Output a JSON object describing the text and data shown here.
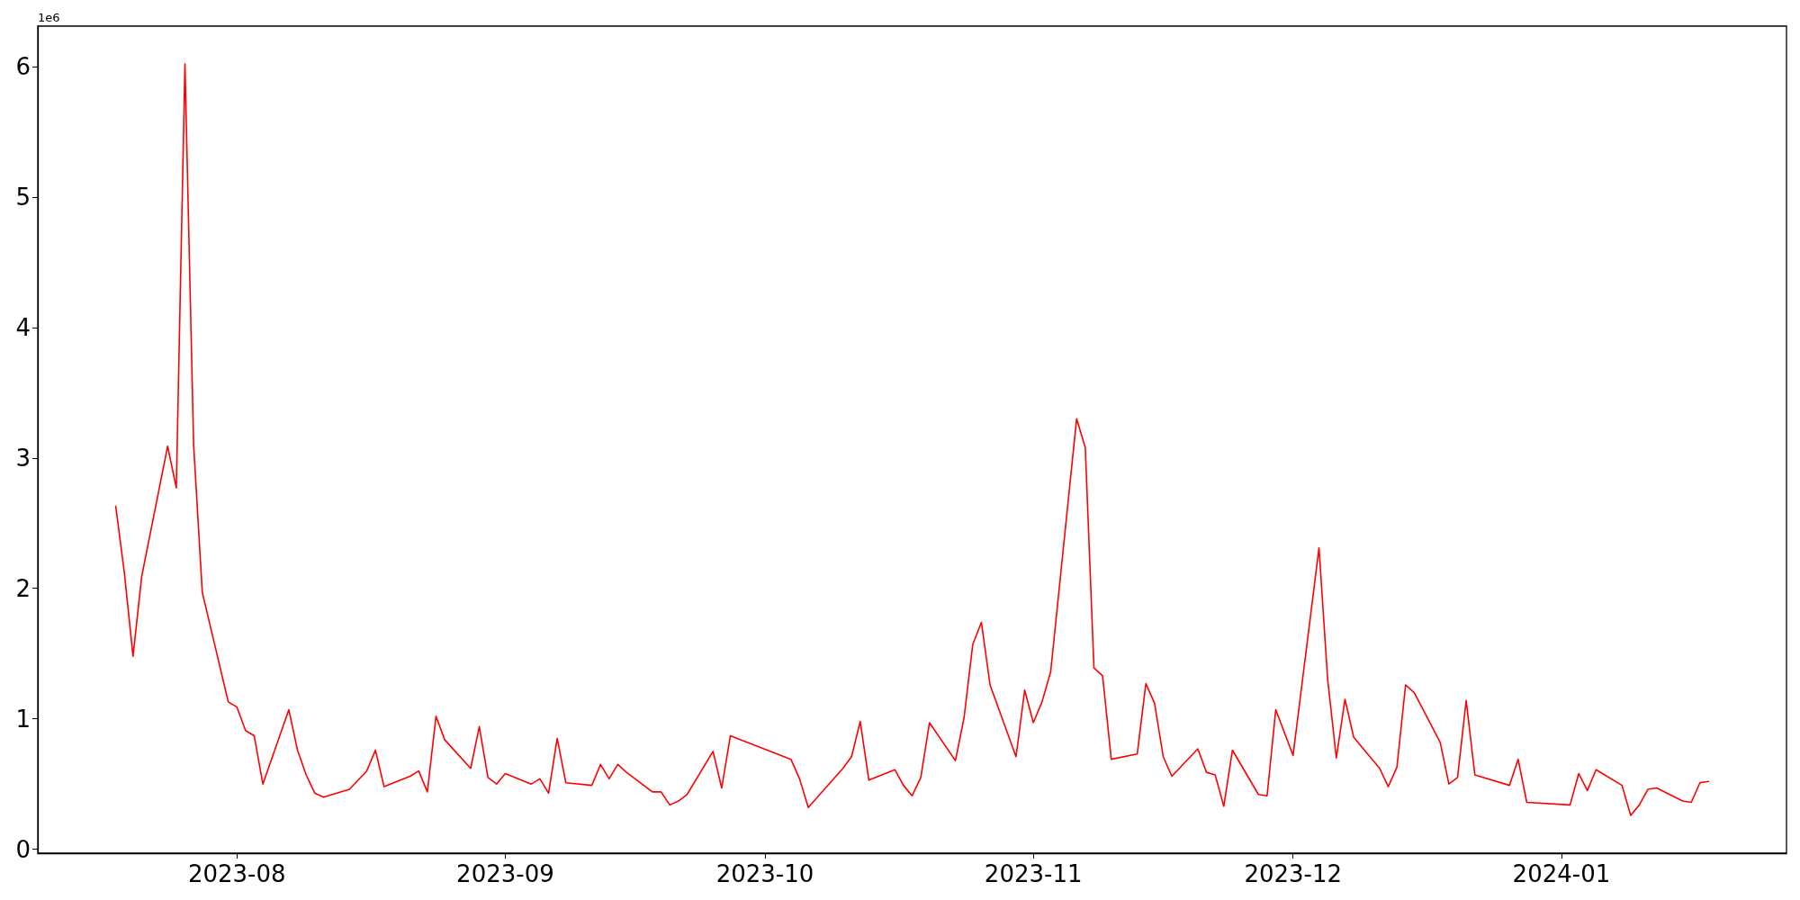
{
  "chart_data": {
    "type": "line",
    "x": [
      "2023-07-18",
      "2023-07-19",
      "2023-07-20",
      "2023-07-21",
      "2023-07-24",
      "2023-07-25",
      "2023-07-26",
      "2023-07-27",
      "2023-07-28",
      "2023-07-31",
      "2023-08-01",
      "2023-08-02",
      "2023-08-03",
      "2023-08-04",
      "2023-08-07",
      "2023-08-08",
      "2023-08-09",
      "2023-08-10",
      "2023-08-11",
      "2023-08-14",
      "2023-08-16",
      "2023-08-17",
      "2023-08-18",
      "2023-08-21",
      "2023-08-22",
      "2023-08-23",
      "2023-08-24",
      "2023-08-25",
      "2023-08-28",
      "2023-08-29",
      "2023-08-30",
      "2023-08-31",
      "2023-09-01",
      "2023-09-04",
      "2023-09-05",
      "2023-09-06",
      "2023-09-07",
      "2023-09-08",
      "2023-09-11",
      "2023-09-12",
      "2023-09-13",
      "2023-09-14",
      "2023-09-15",
      "2023-09-18",
      "2023-09-19",
      "2023-09-20",
      "2023-09-21",
      "2023-09-22",
      "2023-09-25",
      "2023-09-26",
      "2023-09-27",
      "2023-10-04",
      "2023-10-05",
      "2023-10-06",
      "2023-10-10",
      "2023-10-11",
      "2023-10-12",
      "2023-10-13",
      "2023-10-16",
      "2023-10-17",
      "2023-10-18",
      "2023-10-19",
      "2023-10-20",
      "2023-10-23",
      "2023-10-24",
      "2023-10-25",
      "2023-10-26",
      "2023-10-27",
      "2023-10-30",
      "2023-10-31",
      "2023-11-01",
      "2023-11-02",
      "2023-11-03",
      "2023-11-06",
      "2023-11-07",
      "2023-11-08",
      "2023-11-09",
      "2023-11-10",
      "2023-11-13",
      "2023-11-14",
      "2023-11-15",
      "2023-11-16",
      "2023-11-17",
      "2023-11-20",
      "2023-11-21",
      "2023-11-22",
      "2023-11-23",
      "2023-11-24",
      "2023-11-27",
      "2023-11-28",
      "2023-11-29",
      "2023-12-01",
      "2023-12-04",
      "2023-12-05",
      "2023-12-06",
      "2023-12-07",
      "2023-12-08",
      "2023-12-11",
      "2023-12-12",
      "2023-12-13",
      "2023-12-14",
      "2023-12-15",
      "2023-12-18",
      "2023-12-19",
      "2023-12-20",
      "2023-12-21",
      "2023-12-22",
      "2023-12-26",
      "2023-12-27",
      "2023-12-28",
      "2024-01-02",
      "2024-01-03",
      "2024-01-04",
      "2024-01-05",
      "2024-01-08",
      "2024-01-09",
      "2024-01-10",
      "2024-01-11",
      "2024-01-12",
      "2024-01-15",
      "2024-01-16",
      "2024-01-17",
      "2024-01-18"
    ],
    "series": [
      {
        "color": "#ff0000",
        "values": [
          2.63,
          2.12,
          1.48,
          2.09,
          3.09,
          2.77,
          6.02,
          3.1,
          1.97,
          1.13,
          1.09,
          0.91,
          0.87,
          0.5,
          1.07,
          0.76,
          0.57,
          0.43,
          0.4,
          0.46,
          0.6,
          0.76,
          0.48,
          0.56,
          0.6,
          0.44,
          1.02,
          0.84,
          0.62,
          0.94,
          0.55,
          0.5,
          0.58,
          0.5,
          0.54,
          0.43,
          0.85,
          0.51,
          0.49,
          0.65,
          0.54,
          0.65,
          0.59,
          0.44,
          0.44,
          0.34,
          0.37,
          0.42,
          0.75,
          0.47,
          0.87,
          0.69,
          0.54,
          0.32,
          0.62,
          0.71,
          0.98,
          0.53,
          0.61,
          0.49,
          0.41,
          0.55,
          0.97,
          0.68,
          1.01,
          1.57,
          1.74,
          1.26,
          0.71,
          1.22,
          0.97,
          1.13,
          1.36,
          3.3,
          3.08,
          1.39,
          1.33,
          0.69,
          0.73,
          1.27,
          1.12,
          0.71,
          0.56,
          0.77,
          0.59,
          0.57,
          0.33,
          0.76,
          0.42,
          0.41,
          1.07,
          0.72,
          2.31,
          1.3,
          0.7,
          1.15,
          0.86,
          0.62,
          0.48,
          0.63,
          1.26,
          1.2,
          0.82,
          0.5,
          0.55,
          1.14,
          0.57,
          0.49,
          0.69,
          0.36,
          0.34,
          0.58,
          0.45,
          0.61,
          0.49,
          0.26,
          0.34,
          0.46,
          0.47,
          0.37,
          0.36,
          0.51,
          0.52
        ]
      }
    ],
    "xlim": [
      "2023-07-09",
      "2024-01-27"
    ],
    "xticks": [
      "2023-08",
      "2023-09",
      "2023-10",
      "2023-11",
      "2023-12",
      "2024-01"
    ],
    "ylim": [
      -0.03,
      6.31
    ],
    "yticks": [
      0,
      1,
      2,
      3,
      4,
      5,
      6
    ],
    "annotations": [
      "1e6"
    ],
    "grid": false,
    "marker": "none",
    "line_style": "solid"
  }
}
